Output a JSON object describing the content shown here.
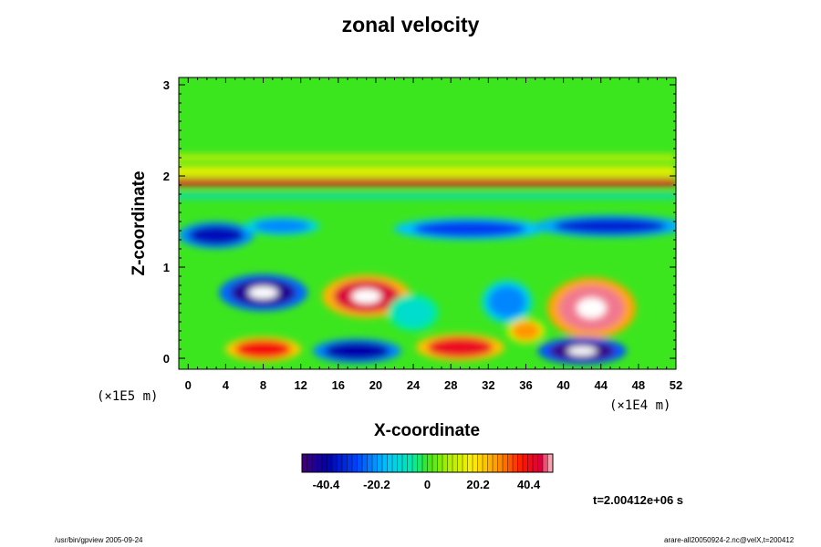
{
  "chart_data": {
    "type": "heatmap",
    "title": "zonal velocity",
    "xlabel": "X-coordinate",
    "ylabel": "Z-coordinate",
    "x_scale_label": "(×1E4 m)",
    "y_scale_label": "(×1E5 m)",
    "xlim": [
      -1,
      52
    ],
    "ylim": [
      -0.12,
      3.08
    ],
    "x_ticks": [
      "0",
      "4",
      "8",
      "12",
      "16",
      "20",
      "24",
      "28",
      "32",
      "36",
      "40",
      "44",
      "48",
      "52"
    ],
    "y_ticks": [
      "0",
      "1",
      "2",
      "3"
    ],
    "colorbar": {
      "tick_labels": [
        "-40.4",
        "-20.2",
        "0",
        "20.2",
        "40.4"
      ],
      "tick_values": [
        -40.4,
        -20.2,
        0,
        20.2,
        40.4
      ],
      "range": [
        -50,
        50
      ]
    },
    "features": [
      {
        "x": 25,
        "y": 1.93,
        "value": 42,
        "shape": "band",
        "width": 54,
        "height": 0.08
      },
      {
        "x": 25,
        "y": 2.05,
        "value": 15,
        "shape": "band",
        "width": 54,
        "height": 0.12
      },
      {
        "x": 25,
        "y": 2.2,
        "value": 14,
        "shape": "band",
        "width": 54,
        "height": 0.06
      },
      {
        "x": 25,
        "y": 1.78,
        "value": -12,
        "shape": "band",
        "width": 54,
        "height": 0.05
      },
      {
        "x": 3,
        "y": 1.35,
        "value": -38,
        "shape": "blob",
        "width": 6,
        "height": 0.22
      },
      {
        "x": 10,
        "y": 1.45,
        "value": -22,
        "shape": "blob",
        "width": 6,
        "height": 0.15
      },
      {
        "x": 30,
        "y": 1.42,
        "value": -30,
        "shape": "blob",
        "width": 12,
        "height": 0.18
      },
      {
        "x": 45,
        "y": 1.45,
        "value": -34,
        "shape": "blob",
        "width": 12,
        "height": 0.18
      },
      {
        "x": 8,
        "y": 0.72,
        "value": -45,
        "shape": "blob",
        "width": 7,
        "height": 0.3
      },
      {
        "x": 19,
        "y": 0.68,
        "value": 45,
        "shape": "blob",
        "width": 7,
        "height": 0.35
      },
      {
        "x": 34,
        "y": 0.62,
        "value": -22,
        "shape": "blob",
        "width": 4,
        "height": 0.35
      },
      {
        "x": 43,
        "y": 0.55,
        "value": 48,
        "shape": "blob",
        "width": 7,
        "height": 0.5
      },
      {
        "x": 8,
        "y": 0.1,
        "value": 40,
        "shape": "blob",
        "width": 6,
        "height": 0.2
      },
      {
        "x": 18,
        "y": 0.08,
        "value": -40,
        "shape": "blob",
        "width": 7,
        "height": 0.2
      },
      {
        "x": 29,
        "y": 0.12,
        "value": 42,
        "shape": "blob",
        "width": 7,
        "height": 0.22
      },
      {
        "x": 42,
        "y": 0.08,
        "value": -48,
        "shape": "blob",
        "width": 7,
        "height": 0.22
      },
      {
        "x": 36,
        "y": 0.3,
        "value": 28,
        "shape": "blob",
        "width": 3,
        "height": 0.2
      },
      {
        "x": 24,
        "y": 0.5,
        "value": -10,
        "shape": "blob",
        "width": 4,
        "height": 0.3
      }
    ]
  },
  "annotations": {
    "time": "t=2.00412e+06 s",
    "footer_left": "/usr/bin/gpview 2005-09-24",
    "footer_right": "arare-all20050924-2.nc@velX,t=200412"
  }
}
